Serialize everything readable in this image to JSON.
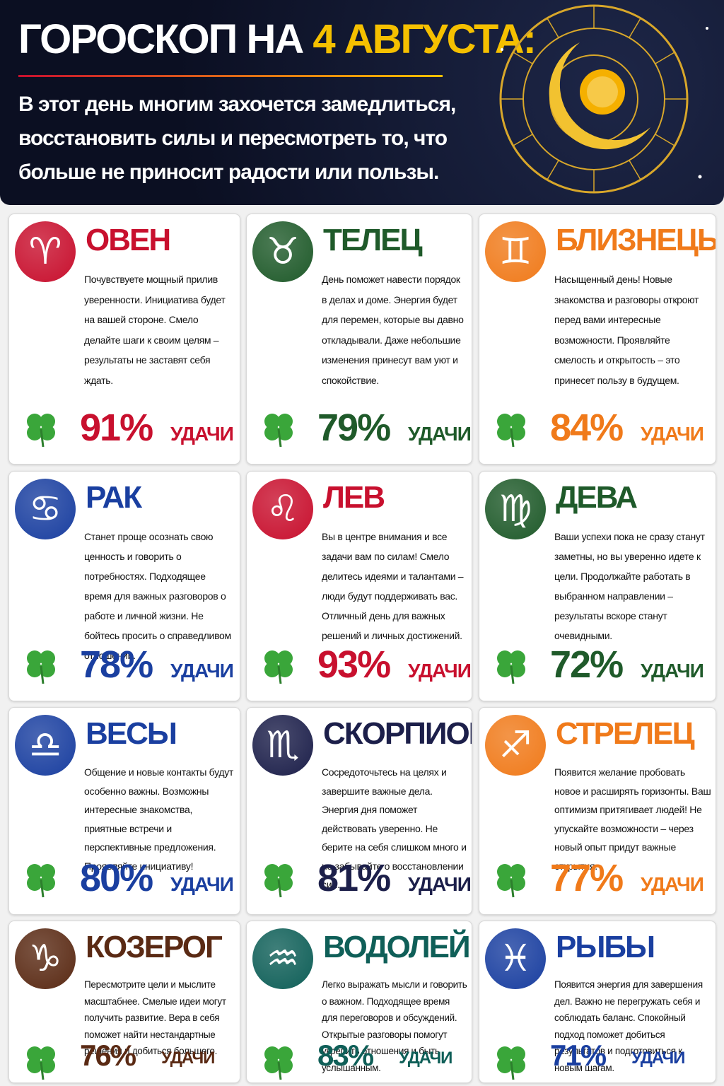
{
  "header": {
    "title_main": "ГОРОСКОП НА",
    "title_date": "4 АВГУСТА:",
    "subtitle": "В этот день многим захочется замедлиться, восстановить силы и пересмотреть то, что больше не приносит радости или пользы."
  },
  "luck_word": "УДАЧИ",
  "signs": [
    {
      "name": "ОВЕН",
      "icon": "♈",
      "color": "#c8102e",
      "text": "Почувствуете мощный прилив уверенности. Инициатива будет на вашей стороне. Смело делайте шаги к своим целям – результаты не заставят себя ждать.",
      "luck": "91%"
    },
    {
      "name": "ТЕЛЕЦ",
      "icon": "♉",
      "color": "#1f5a2a",
      "text": "День поможет навести порядок в делах и доме. Энергия будет для перемен, которые вы давно откладывали. Даже небольшие изменения принесут вам уют и спокойствие.",
      "luck": "79%"
    },
    {
      "name": "БЛИЗНЕЦЫ",
      "icon": "♊",
      "color": "#f07a1a",
      "text": "Насыщенный день! Новые знакомства и разговоры откроют перед вами интересные возможности. Проявляйте смелость и открытость – это принесет пользу в будущем.",
      "luck": "84%"
    },
    {
      "name": "РАК",
      "icon": "♋",
      "color": "#1a3fa0",
      "text": "Станет проще осознать свою ценность и говорить о потребностях. Подходящее время для важных разговоров о работе и личной жизни. Не бойтесь просить о справедливом отношении.",
      "luck": "78%"
    },
    {
      "name": "ЛЕВ",
      "icon": "♌",
      "color": "#c8102e",
      "text": "Вы в центре внимания и все задачи вам по силам! Смело делитесь идеями и талантами – люди будут поддерживать вас. Отличный день для важных решений и личных достижений.",
      "luck": "93%"
    },
    {
      "name": "ДЕВА",
      "icon": "♍",
      "color": "#1f5a2a",
      "text": "Ваши успехи пока не сразу станут заметны, но вы уверенно идете к цели. Продолжайте работать в выбранном направлении – результаты вскоре станут очевидными.",
      "luck": "72%"
    },
    {
      "name": "ВЕСЫ",
      "icon": "♎",
      "color": "#1a3fa0",
      "text": "Общение и новые контакты будут особенно важны. Возможны интересные знакомства, приятные встречи и перспективные предложения. Проявляйте инициативу!",
      "luck": "80%"
    },
    {
      "name": "СКОРПИОН",
      "icon": "♏",
      "color": "#1c1f4a",
      "text": "Сосредоточьтесь на целях и завершите важные дела. Энергия дня поможет действовать уверенно. Не берите на себя слишком много и не забывайте о восстановлении сил.",
      "luck": "81%"
    },
    {
      "name": "СТРЕЛЕЦ",
      "icon": "♐",
      "color": "#f07a1a",
      "text": "Появится желание пробовать новое и расширять горизонты. Ваш оптимизм притягивает людей! Не упускайте возможности – через новый опыт придут важные открытия.",
      "luck": "77%"
    },
    {
      "name": "КОЗЕРОГ",
      "icon": "♑",
      "color": "#5a2a14",
      "text": "Пересмотрите цели и мыслите масштабнее. Смелые идеи могут получить развитие. Вера в себя поможет найти нестандартные решения и добиться большего.",
      "luck": "76%"
    },
    {
      "name": "ВОДОЛЕЙ",
      "icon": "♒",
      "color": "#0f5f58",
      "text": "Легко выражать мысли и говорить о важном. Подходящее время для переговоров и обсуждений. Открытые разговоры помогут укрепить отношения и быть услышанным.",
      "luck": "83%"
    },
    {
      "name": "РЫБЫ",
      "icon": "♓",
      "color": "#1a3fa0",
      "text": "Появится энергия для завершения дел. Важно не перегружать себя и соблюдать баланс. Спокойный подход поможет добиться результатов и подготовиться к новым шагам.",
      "luck": "71%"
    }
  ]
}
